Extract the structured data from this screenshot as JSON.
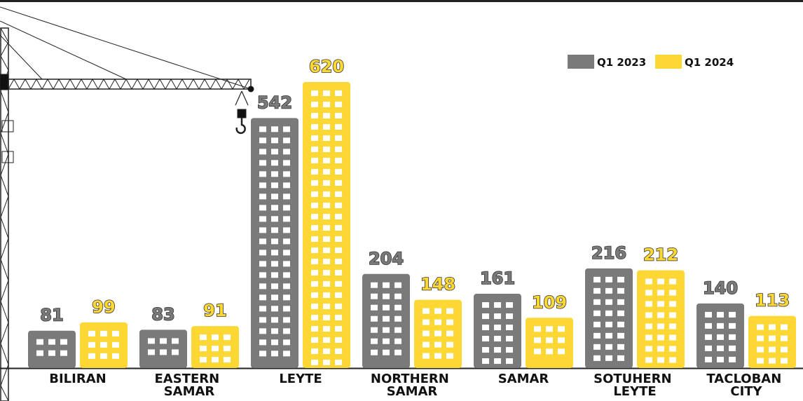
{
  "chart_data": {
    "type": "bar",
    "categories": [
      "BILIRAN",
      "EASTERN SAMAR",
      "LEYTE",
      "NORTHERN SAMAR",
      "SAMAR",
      "SOTUHERN LEYTE",
      "TACLOBAN CITY"
    ],
    "series": [
      {
        "name": "Q1 2023",
        "color": "#7a7a7a",
        "values": [
          81,
          83,
          542,
          204,
          161,
          216,
          140
        ]
      },
      {
        "name": "Q1 2024",
        "color": "#fdd835",
        "values": [
          99,
          91,
          620,
          148,
          109,
          212,
          113
        ]
      }
    ]
  }
}
